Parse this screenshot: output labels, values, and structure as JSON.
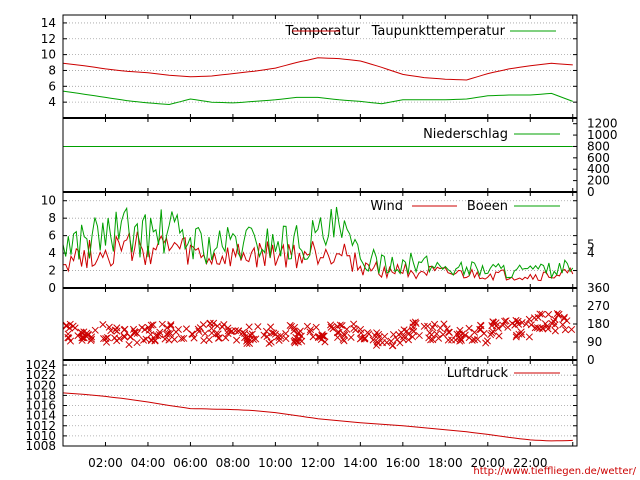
{
  "source_link": "http://www.tieffliegen.de/wetter/",
  "colors": {
    "red": "#cc0000",
    "green": "#00a000",
    "grid": "#a0a0a0",
    "axis": "#000000"
  },
  "x_axis": {
    "ticks": [
      "02:00",
      "04:00",
      "06:00",
      "08:00",
      "10:00",
      "12:00",
      "14:00",
      "16:00",
      "18:00",
      "20:00",
      "22:00"
    ]
  },
  "chart_data": [
    {
      "id": "temperature",
      "type": "line",
      "ylim": [
        2,
        15
      ],
      "y_ticks_left": [
        "4",
        "6",
        "8",
        "10",
        "12",
        "14"
      ],
      "grid": true,
      "legend_position": "top-right",
      "x_hours": [
        0,
        1,
        2,
        3,
        4,
        5,
        6,
        7,
        8,
        9,
        10,
        11,
        12,
        13,
        14,
        15,
        16,
        17,
        18,
        19,
        20,
        21,
        22,
        23,
        24
      ],
      "series": [
        {
          "name": "Temperatur",
          "color": "red",
          "values": [
            8.9,
            8.6,
            8.2,
            7.9,
            7.7,
            7.4,
            7.2,
            7.3,
            7.6,
            7.9,
            8.3,
            9.0,
            9.6,
            9.5,
            9.2,
            8.4,
            7.5,
            7.1,
            6.9,
            6.8,
            7.6,
            8.2,
            8.6,
            8.9,
            8.7
          ]
        },
        {
          "name": "Taupunkttemperatur",
          "color": "green",
          "values": [
            5.4,
            5.0,
            4.6,
            4.2,
            3.9,
            3.7,
            4.4,
            4.0,
            3.9,
            4.1,
            4.3,
            4.6,
            4.6,
            4.3,
            4.1,
            3.8,
            4.3,
            4.3,
            4.3,
            4.4,
            4.8,
            4.9,
            4.9,
            5.1,
            4.1
          ]
        }
      ]
    },
    {
      "id": "precipitation",
      "type": "line",
      "ylim": [
        0,
        1300
      ],
      "y_ticks_right": [
        "0",
        "200",
        "400",
        "600",
        "800",
        "1000",
        "1200"
      ],
      "grid": false,
      "legend_position": "top-right",
      "series": [
        {
          "name": "Niederschlag",
          "color": "green",
          "x_hours": [
            0,
            24
          ],
          "values": [
            800,
            800
          ]
        }
      ]
    },
    {
      "id": "wind",
      "type": "line",
      "ylim": [
        0,
        11
      ],
      "y_ticks_left": [
        "0",
        "2",
        "4",
        "6",
        "8",
        "10"
      ],
      "y_ticks_right": [
        "4",
        "5"
      ],
      "grid": true,
      "legend_position": "top-right",
      "x_hours": [
        0,
        1,
        2,
        3,
        4,
        5,
        6,
        7,
        8,
        9,
        10,
        11,
        12,
        13,
        14,
        15,
        16,
        17,
        18,
        19,
        20,
        21,
        22,
        23,
        24
      ],
      "series": [
        {
          "name": "Wind",
          "color": "red",
          "values": [
            3.3,
            3.8,
            4.2,
            4.6,
            4.3,
            4.6,
            3.9,
            3.2,
            3.5,
            3.6,
            3.8,
            3.6,
            4.1,
            4.6,
            2.4,
            2.0,
            2.1,
            1.8,
            1.6,
            1.5,
            1.5,
            1.4,
            1.3,
            1.4,
            1.6
          ]
        },
        {
          "name": "Boeen",
          "color": "green",
          "values": [
            4.9,
            5.6,
            6.1,
            6.5,
            6.0,
            6.4,
            5.5,
            4.6,
            5.1,
            5.2,
            5.4,
            5.2,
            5.8,
            6.6,
            3.3,
            2.9,
            2.9,
            2.6,
            2.4,
            2.2,
            2.2,
            2.0,
            1.9,
            2.0,
            2.3
          ]
        }
      ]
    },
    {
      "id": "wind_direction",
      "type": "scatter",
      "ylim": [
        0,
        360
      ],
      "y_ticks_right": [
        "0",
        "90",
        "180",
        "270",
        "360"
      ],
      "grid": false,
      "series": [
        {
          "color": "red",
          "marker": "x",
          "hour_ranges": [
            [
              0,
              2,
              135
            ],
            [
              2,
              4,
              120
            ],
            [
              4,
              6,
              140
            ],
            [
              6,
              8,
              140
            ],
            [
              8,
              10,
              125
            ],
            [
              10,
              12,
              130
            ],
            [
              12,
              14,
              135
            ],
            [
              14,
              16,
              110
            ],
            [
              16,
              18,
              145
            ],
            [
              18,
              20,
              130
            ],
            [
              20,
              22,
              160
            ],
            [
              22,
              24,
              190
            ]
          ]
        }
      ]
    },
    {
      "id": "pressure",
      "type": "line",
      "ylim": [
        1008,
        1025
      ],
      "y_ticks_left": [
        "1008",
        "1010",
        "1012",
        "1014",
        "1016",
        "1018",
        "1020",
        "1022",
        "1024"
      ],
      "grid": true,
      "legend_position": "top-right",
      "x_hours": [
        0,
        1,
        2,
        3,
        4,
        5,
        6,
        7,
        8,
        9,
        10,
        11,
        12,
        13,
        14,
        15,
        16,
        17,
        18,
        19,
        20,
        21,
        22,
        23,
        24
      ],
      "series": [
        {
          "name": "Luftdruck",
          "color": "red",
          "values": [
            1018.5,
            1018.2,
            1017.8,
            1017.3,
            1016.7,
            1016.0,
            1015.4,
            1015.3,
            1015.2,
            1015.0,
            1014.6,
            1014.0,
            1013.4,
            1013.0,
            1012.6,
            1012.3,
            1012.0,
            1011.6,
            1011.2,
            1010.8,
            1010.3,
            1009.7,
            1009.2,
            1009.0,
            1009.1
          ]
        }
      ]
    }
  ]
}
